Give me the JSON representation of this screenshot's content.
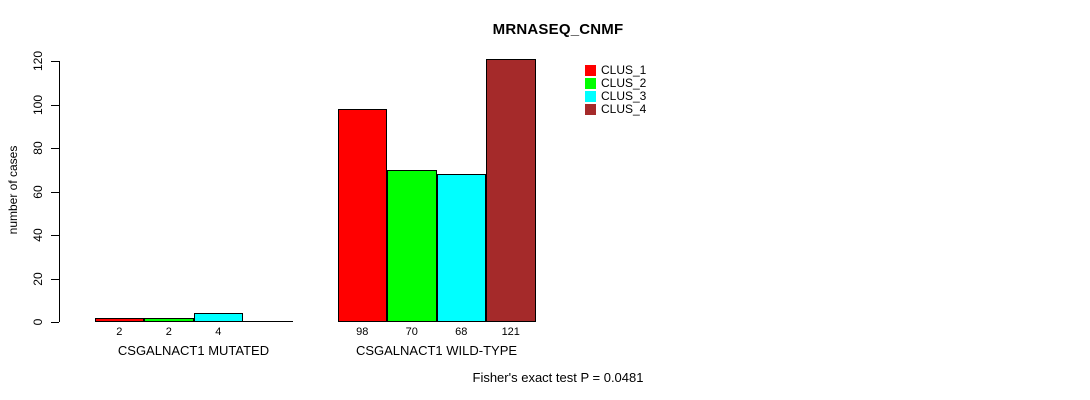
{
  "chart_data": {
    "type": "bar",
    "title": "MRNASEQ_CNMF",
    "ylabel": "number of cases",
    "xlabel": "",
    "ylim": [
      0,
      120
    ],
    "y_ticks": [
      0,
      20,
      40,
      60,
      80,
      100,
      120
    ],
    "grid": false,
    "categories": [
      "CSGALNACT1 MUTATED",
      "CSGALNACT1 WILD-TYPE"
    ],
    "series": [
      {
        "name": "CLUS_1",
        "color": "#ff0000",
        "values": [
          2,
          98
        ]
      },
      {
        "name": "CLUS_2",
        "color": "#00ff00",
        "values": [
          2,
          70
        ]
      },
      {
        "name": "CLUS_3",
        "color": "#00ffff",
        "values": [
          4,
          68
        ]
      },
      {
        "name": "CLUS_4",
        "color": "#a52a2a",
        "values": [
          0,
          121
        ]
      }
    ],
    "bar_value_labels": [
      [
        "2",
        "2",
        "4",
        ""
      ],
      [
        "98",
        "70",
        "68",
        "121"
      ]
    ],
    "bar_border_color": "#000000",
    "legend": {
      "position": "top-right",
      "entries": [
        "CLUS_1",
        "CLUS_2",
        "CLUS_3",
        "CLUS_4"
      ]
    },
    "annotation": "Fisher's exact test P = 0.0481"
  }
}
